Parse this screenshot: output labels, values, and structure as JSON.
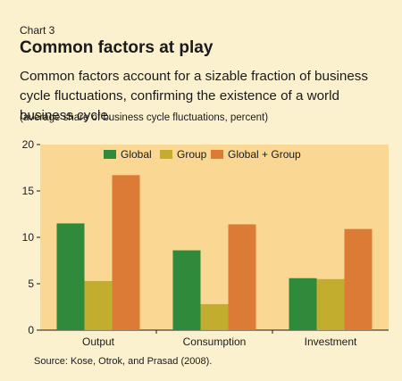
{
  "header": {
    "chart_number": "Chart 3",
    "title": "Common factors at play",
    "subtitle": "Common factors account for a sizable fraction of business cycle fluctuations, confirming the existence of a world business cycle.",
    "units_note": "(average share of business cycle fluctuations, percent)"
  },
  "footer": {
    "source": "Source: Kose, Otrok, and Prasad (2008)."
  },
  "colors": {
    "page_background": "#fbf1cf",
    "plot_background": "#fad792",
    "global": "#2f8a3c",
    "group": "#c3ad2e",
    "global_plus_group": "#dc7b36"
  },
  "chart_data": {
    "type": "bar",
    "title": "Common factors at play",
    "categories": [
      "Output",
      "Consumption",
      "Investment"
    ],
    "series": [
      {
        "name": "Global",
        "color": "#2f8a3c",
        "values": [
          11.5,
          8.6,
          5.6
        ]
      },
      {
        "name": "Group",
        "color": "#c3ad2e",
        "values": [
          5.3,
          2.8,
          5.5
        ]
      },
      {
        "name": "Global + Group",
        "color": "#dc7b36",
        "values": [
          16.7,
          11.4,
          10.9
        ]
      }
    ],
    "ylim": [
      0,
      20
    ],
    "yticks": [
      0,
      5,
      10,
      15,
      20
    ],
    "grid": false,
    "legend_position": "top-center"
  }
}
